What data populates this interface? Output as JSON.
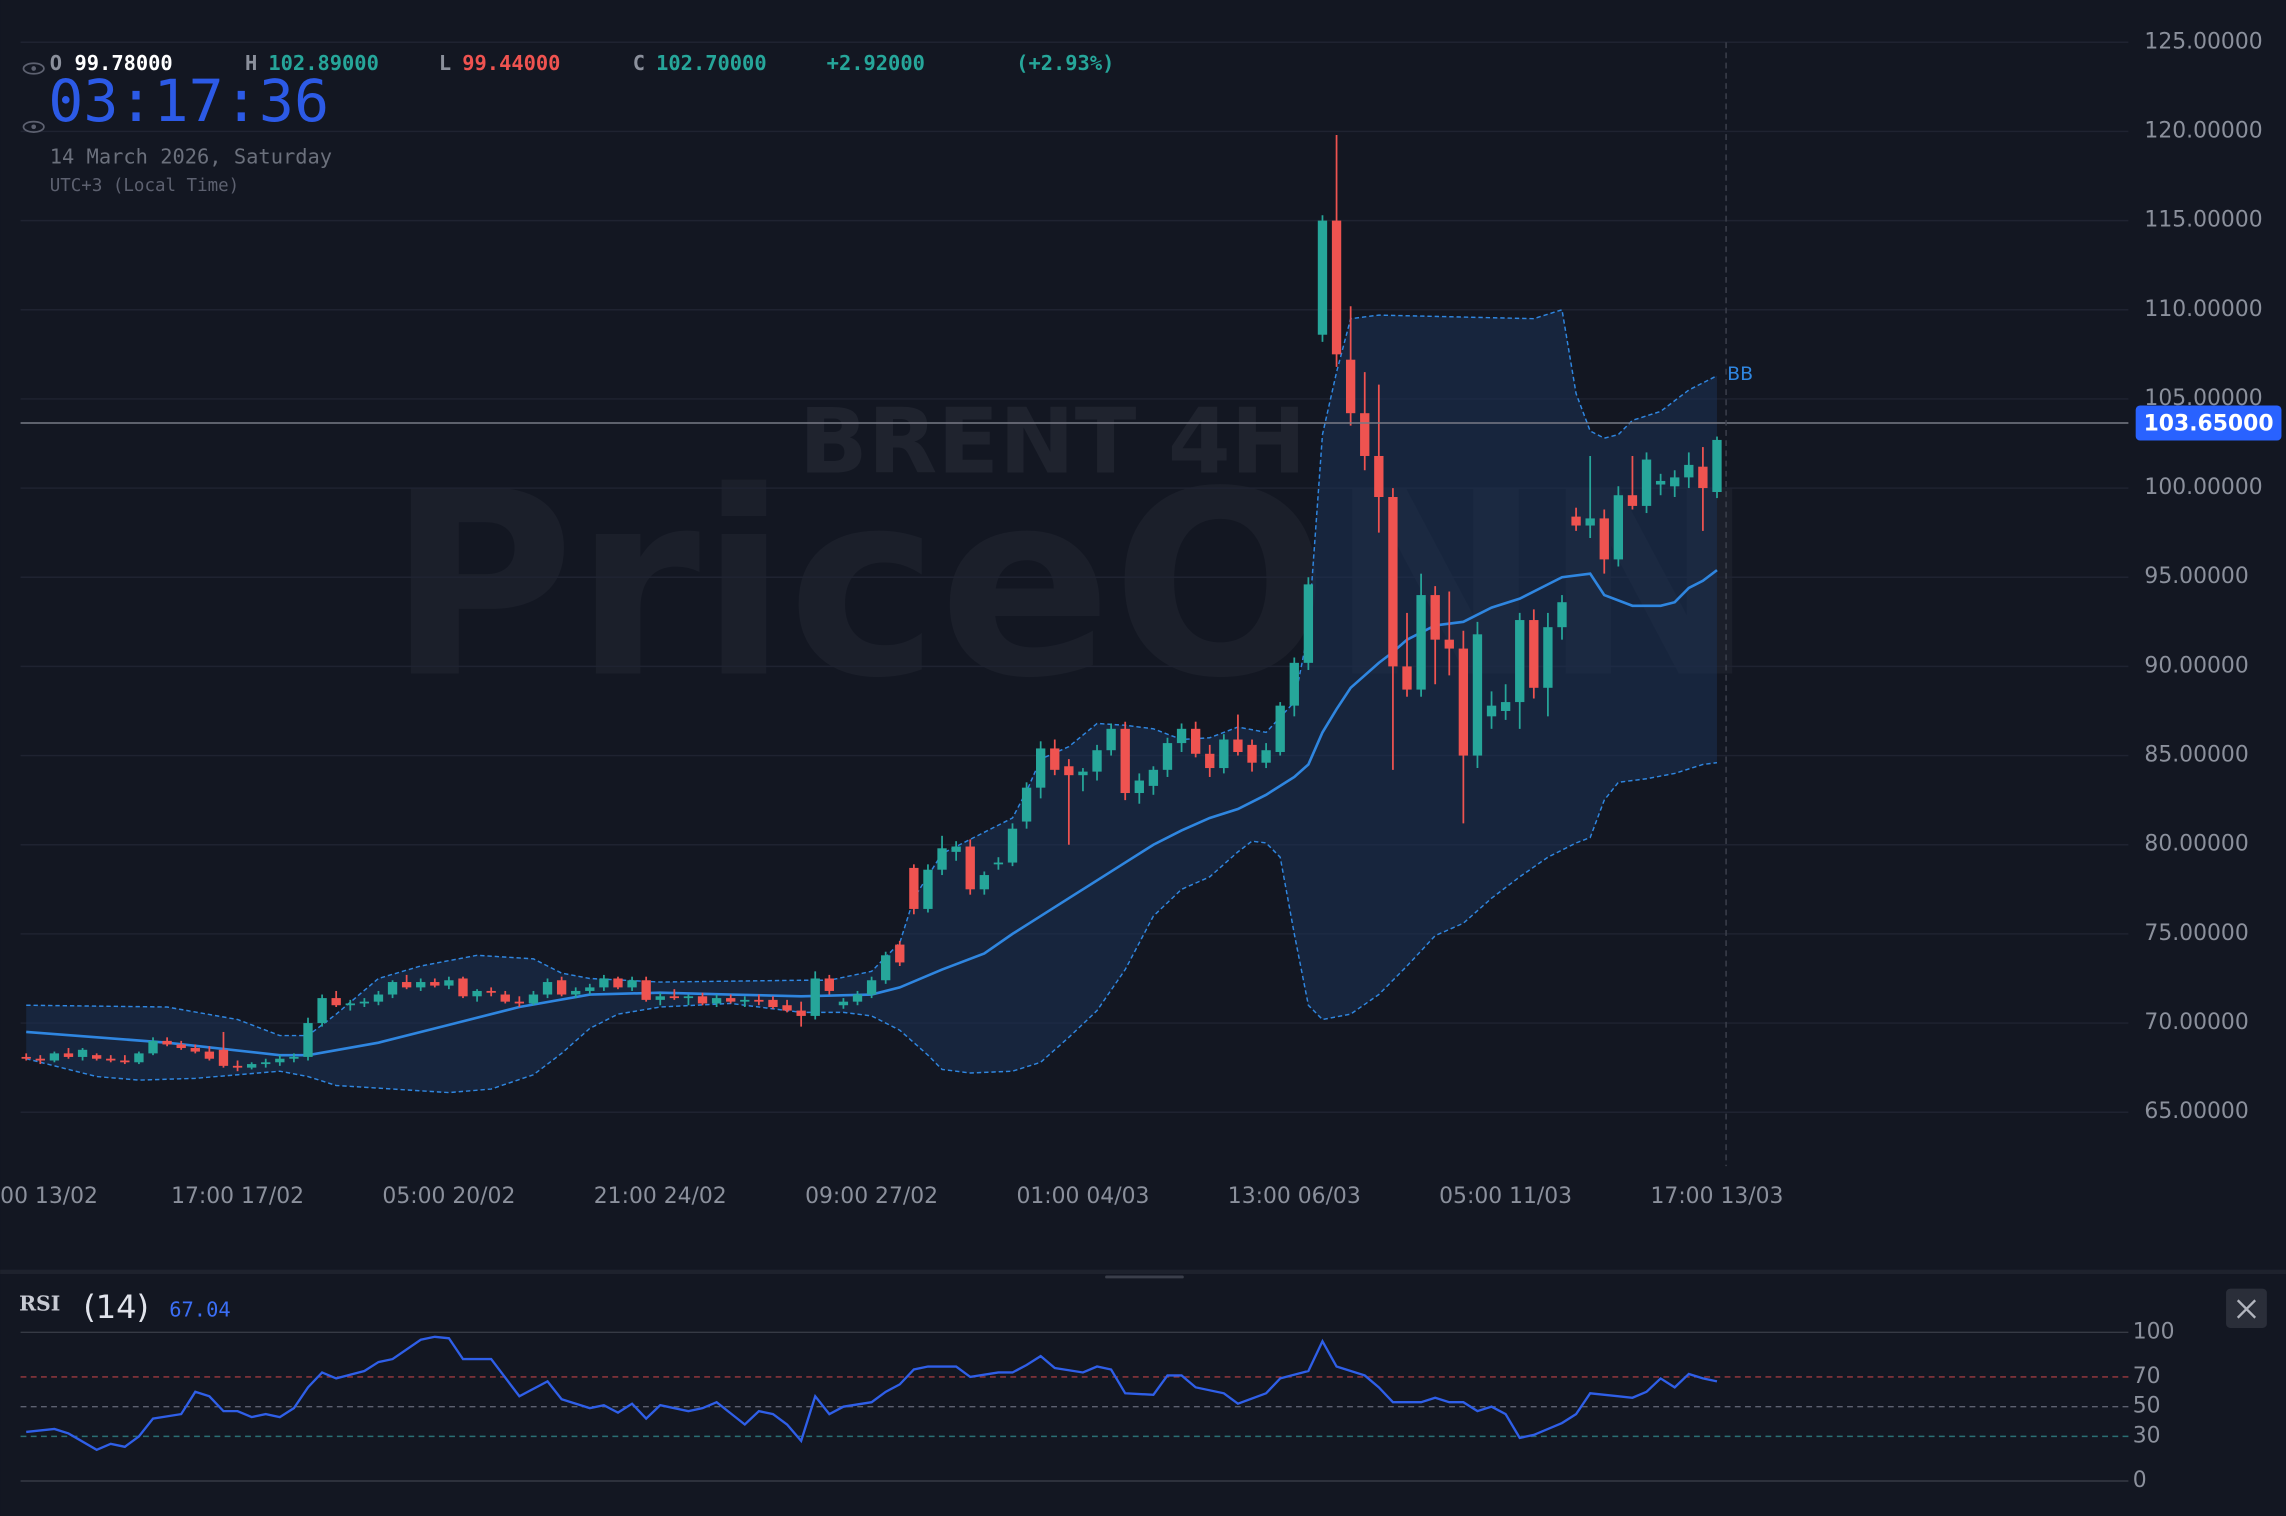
{
  "header": {
    "ohlc": [
      {
        "label": "O",
        "value": "99.78000",
        "color": "#ffffff"
      },
      {
        "label": "H",
        "value": "102.89000",
        "color": "#26a69a"
      },
      {
        "label": "L",
        "value": "99.44000",
        "color": "#ef5350"
      },
      {
        "label": "C",
        "value": "102.70000",
        "color": "#26a69a"
      }
    ],
    "change": "+2.92000",
    "change_pct": "(+2.93%)",
    "change_color": "#26a69a",
    "clock": "03:17:36",
    "date": "14 March 2026, Saturday",
    "timezone": "UTC+3 (Local Time)",
    "watermark": {
      "symbol": "BRENT 4H",
      "brand": "PriceONN"
    }
  },
  "chart_data": [
    {
      "type": "candlestick",
      "up_color": "#26a69a",
      "down_color": "#ef5350",
      "open": [
        68.1,
        68.0,
        67.9,
        68.3,
        68.1,
        68.2,
        68.0,
        67.9,
        67.8,
        68.3,
        69.0,
        68.8,
        68.6,
        68.4,
        68.5,
        67.6,
        67.5,
        67.7,
        67.8,
        68.0,
        68.1,
        70.0,
        71.4,
        71.0,
        71.1,
        71.2,
        71.6,
        72.3,
        72.0,
        72.3,
        72.1,
        72.5,
        71.5,
        71.8,
        71.6,
        71.2,
        71.1,
        71.6,
        72.4,
        71.6,
        71.8,
        72.0,
        72.5,
        72.0,
        72.4,
        71.3,
        71.5,
        71.4,
        71.5,
        71.1,
        71.4,
        71.2,
        71.3,
        71.3,
        71.0,
        70.7,
        70.4,
        72.5,
        71.0,
        71.2,
        71.6,
        72.4,
        74.4,
        78.7,
        76.4,
        78.6,
        79.6,
        79.9,
        77.5,
        78.9,
        79.0,
        81.3,
        83.2,
        85.4,
        84.4,
        83.9,
        84.1,
        85.3,
        86.5,
        82.9,
        83.3,
        84.2,
        85.7,
        86.5,
        85.1,
        84.3,
        85.9,
        85.6,
        84.6,
        85.2,
        87.8,
        90.2,
        108.6,
        115.0,
        107.2,
        104.2,
        101.8,
        99.5,
        90.0,
        88.7,
        94.0,
        91.5,
        91.0,
        85.0,
        87.2,
        87.5,
        88.0,
        92.6,
        88.8,
        92.2,
        98.4,
        97.9,
        98.3,
        96.0,
        99.6,
        99.0,
        100.2,
        100.1,
        100.6,
        101.2,
        99.78
      ],
      "high": [
        68.3,
        68.2,
        68.4,
        68.6,
        68.6,
        68.3,
        68.2,
        68.2,
        68.4,
        69.2,
        69.2,
        69.0,
        68.8,
        68.7,
        69.5,
        67.9,
        67.8,
        68.0,
        68.2,
        68.3,
        70.3,
        71.6,
        71.8,
        71.3,
        71.4,
        71.8,
        72.4,
        72.7,
        72.5,
        72.5,
        72.6,
        72.6,
        71.9,
        72.0,
        71.8,
        71.5,
        71.8,
        72.5,
        72.6,
        72.0,
        72.2,
        72.7,
        72.6,
        72.6,
        72.6,
        71.7,
        71.9,
        71.6,
        71.7,
        71.6,
        71.6,
        71.5,
        71.6,
        71.5,
        71.3,
        71.2,
        72.9,
        72.7,
        71.4,
        71.8,
        72.6,
        74.0,
        74.6,
        78.9,
        78.9,
        80.5,
        80.2,
        80.3,
        78.5,
        79.3,
        81.2,
        83.5,
        85.8,
        85.9,
        84.8,
        84.3,
        85.6,
        86.8,
        86.9,
        84.0,
        84.4,
        86.0,
        86.8,
        86.9,
        85.6,
        86.2,
        87.3,
        85.9,
        85.7,
        88.0,
        90.5,
        95.0,
        115.3,
        119.8,
        110.2,
        106.5,
        105.8,
        100.0,
        93.0,
        95.2,
        94.5,
        94.2,
        92.0,
        92.5,
        88.6,
        89.0,
        93.0,
        93.2,
        93.0,
        94.0,
        98.9,
        101.8,
        98.8,
        100.1,
        101.8,
        102.0,
        100.8,
        101.0,
        102.0,
        102.3,
        102.89
      ],
      "low": [
        67.9,
        67.7,
        67.8,
        68.0,
        67.9,
        67.9,
        67.8,
        67.7,
        67.7,
        68.2,
        68.7,
        68.5,
        68.3,
        67.9,
        67.5,
        67.3,
        67.4,
        67.5,
        67.6,
        67.8,
        67.9,
        69.8,
        70.9,
        70.7,
        70.9,
        71.0,
        71.4,
        71.9,
        71.8,
        72.0,
        71.9,
        71.4,
        71.2,
        71.5,
        71.1,
        70.9,
        71.0,
        71.4,
        71.5,
        71.4,
        71.6,
        71.8,
        71.9,
        71.8,
        71.2,
        71.0,
        71.3,
        71.0,
        71.0,
        70.9,
        71.1,
        70.9,
        71.0,
        70.8,
        70.6,
        69.8,
        70.2,
        71.6,
        70.8,
        71.0,
        71.4,
        72.2,
        73.2,
        76.1,
        76.2,
        78.3,
        79.1,
        77.2,
        77.2,
        78.6,
        78.8,
        80.9,
        82.6,
        83.9,
        80.0,
        83.0,
        83.6,
        85.0,
        82.5,
        82.3,
        82.8,
        83.8,
        85.2,
        84.9,
        83.8,
        84.0,
        85.0,
        84.1,
        84.3,
        85.0,
        87.2,
        89.8,
        108.2,
        106.8,
        103.5,
        101.0,
        97.5,
        84.2,
        88.3,
        88.3,
        89.0,
        89.5,
        81.2,
        84.3,
        86.5,
        87.0,
        86.5,
        88.2,
        87.2,
        91.5,
        97.6,
        97.2,
        95.2,
        95.6,
        98.8,
        98.6,
        99.6,
        99.5,
        100.0,
        97.6,
        99.44
      ],
      "close": [
        68.0,
        67.9,
        68.3,
        68.1,
        68.5,
        68.0,
        67.9,
        67.8,
        68.3,
        69.0,
        68.8,
        68.6,
        68.4,
        68.0,
        67.6,
        67.5,
        67.7,
        67.8,
        68.0,
        68.1,
        70.0,
        71.4,
        71.0,
        71.1,
        71.2,
        71.6,
        72.3,
        72.0,
        72.3,
        72.1,
        72.4,
        71.5,
        71.8,
        71.7,
        71.2,
        71.1,
        71.6,
        72.3,
        71.6,
        71.8,
        72.0,
        72.5,
        72.0,
        72.4,
        71.3,
        71.5,
        71.4,
        71.5,
        71.1,
        71.4,
        71.2,
        71.3,
        71.2,
        70.9,
        70.7,
        70.4,
        72.5,
        71.8,
        71.2,
        71.6,
        72.4,
        73.8,
        73.4,
        76.4,
        78.6,
        79.8,
        79.9,
        77.5,
        78.3,
        79.0,
        80.9,
        83.2,
        85.4,
        84.2,
        83.9,
        84.1,
        85.3,
        86.5,
        82.9,
        83.6,
        84.2,
        85.7,
        86.5,
        85.1,
        84.3,
        85.9,
        85.2,
        84.6,
        85.3,
        87.8,
        90.2,
        94.6,
        115.0,
        107.5,
        104.2,
        101.8,
        99.5,
        90.0,
        88.7,
        94.0,
        91.5,
        91.0,
        85.0,
        91.8,
        87.8,
        88.0,
        92.6,
        88.8,
        92.2,
        93.6,
        97.9,
        98.3,
        96.0,
        99.6,
        99.0,
        101.6,
        100.4,
        100.6,
        101.3,
        100.0,
        102.7
      ],
      "xlim": [
        -0.4,
        149.2
      ],
      "xticks": [
        {
          "value": 0,
          "label": "00 13/02"
        },
        {
          "value": 15,
          "label": "17:00 17/02"
        },
        {
          "value": 30,
          "label": "05:00 20/02"
        },
        {
          "value": 45,
          "label": "21:00 24/02"
        },
        {
          "value": 60,
          "label": "09:00 27/02"
        },
        {
          "value": 75,
          "label": "01:00 04/03"
        },
        {
          "value": 90,
          "label": "13:00 06/03"
        },
        {
          "value": 105,
          "label": "05:00 11/03"
        },
        {
          "value": 120,
          "label": "17:00 13/03"
        }
      ],
      "ylim": [
        65,
        125
      ],
      "yticks": [
        {
          "value": 65,
          "label": "65.00000"
        },
        {
          "value": 70,
          "label": "70.00000"
        },
        {
          "value": 75,
          "label": "75.00000"
        },
        {
          "value": 80,
          "label": "80.00000"
        },
        {
          "value": 85,
          "label": "85.00000"
        },
        {
          "value": 90,
          "label": "90.00000"
        },
        {
          "value": 95,
          "label": "95.00000"
        },
        {
          "value": 100,
          "label": "100.00000"
        },
        {
          "value": 105,
          "label": "105.00000"
        },
        {
          "value": 110,
          "label": "110.00000"
        },
        {
          "value": 115,
          "label": "115.00000"
        },
        {
          "value": 120,
          "label": "120.00000"
        },
        {
          "value": 125,
          "label": "125.00000"
        }
      ],
      "grid": true,
      "price_line": {
        "value": 103.65,
        "label": "103.65000",
        "color": "#2962ff"
      },
      "bands": {
        "name": "BB",
        "color": "#2f86e0",
        "fill": "#1b3154",
        "upper": {
          "x": [
            0,
            10,
            15,
            18,
            20,
            22,
            25,
            28,
            32,
            36,
            38,
            40,
            45,
            55,
            57,
            60,
            62,
            63,
            65,
            67,
            70,
            71,
            72,
            74,
            76,
            78,
            80,
            82,
            84,
            86,
            88,
            90,
            91,
            92,
            93,
            94,
            96,
            107,
            109,
            110,
            111,
            112,
            113,
            114,
            116,
            118,
            120
          ],
          "values": [
            71.0,
            70.9,
            70.2,
            69.3,
            69.3,
            70.5,
            72.5,
            73.2,
            73.8,
            73.6,
            72.8,
            72.5,
            72.3,
            72.4,
            72.4,
            72.9,
            74.5,
            77.0,
            79.5,
            80.3,
            81.5,
            83.0,
            84.8,
            85.5,
            86.8,
            86.7,
            86.5,
            85.9,
            86.0,
            86.6,
            86.3,
            88.0,
            92.0,
            103.0,
            106.5,
            109.5,
            109.7,
            109.5,
            110.0,
            105.3,
            103.2,
            102.8,
            103.0,
            103.8,
            104.3,
            105.5,
            106.3
          ]
        },
        "middle": {
          "x": [
            0,
            10,
            18,
            20,
            25,
            30,
            35,
            40,
            45,
            50,
            55,
            60,
            62,
            65,
            68,
            70,
            72,
            75,
            78,
            80,
            82,
            84,
            86,
            88,
            90,
            91,
            92,
            93,
            94,
            96,
            97,
            98,
            100,
            102,
            104,
            106,
            108,
            109,
            111,
            112,
            114,
            116,
            117,
            118,
            119,
            120
          ],
          "values": [
            69.5,
            68.9,
            68.2,
            68.2,
            68.9,
            69.9,
            70.9,
            71.6,
            71.7,
            71.6,
            71.5,
            71.6,
            72.0,
            73.0,
            73.9,
            75.0,
            76.0,
            77.5,
            79.0,
            80.0,
            80.8,
            81.5,
            82.0,
            82.8,
            83.8,
            84.5,
            86.3,
            87.6,
            88.8,
            90.2,
            90.8,
            91.5,
            92.3,
            92.5,
            93.3,
            93.8,
            94.6,
            95.0,
            95.2,
            94.0,
            93.4,
            93.4,
            93.6,
            94.4,
            94.8,
            95.4
          ]
        },
        "lower": {
          "x": [
            0,
            5,
            8,
            12,
            18,
            20,
            22,
            26,
            30,
            33,
            36,
            38,
            40,
            42,
            45,
            50,
            55,
            58,
            60,
            62,
            64,
            65,
            67,
            70,
            72,
            74,
            76,
            78,
            79,
            80,
            82,
            84,
            86,
            87,
            88,
            89,
            90,
            91,
            92,
            94,
            96,
            98,
            100,
            102,
            104,
            106,
            108,
            110,
            111,
            112,
            113,
            115,
            117,
            119,
            120
          ],
          "values": [
            68.0,
            67.0,
            66.8,
            66.9,
            67.3,
            67.0,
            66.5,
            66.3,
            66.1,
            66.3,
            67.1,
            68.3,
            69.7,
            70.5,
            70.9,
            71.1,
            70.6,
            70.6,
            70.4,
            69.6,
            68.2,
            67.4,
            67.2,
            67.3,
            67.8,
            69.2,
            70.7,
            73.0,
            74.5,
            76.0,
            77.5,
            78.2,
            79.6,
            80.2,
            80.1,
            79.3,
            75.0,
            71.0,
            70.2,
            70.5,
            71.6,
            73.2,
            74.9,
            75.6,
            77.0,
            78.2,
            79.3,
            80.1,
            80.4,
            82.5,
            83.5,
            83.7,
            84.0,
            84.5,
            84.6
          ]
        }
      }
    },
    {
      "type": "line",
      "name": "RSI",
      "period": "(14)",
      "color": "#2f5fe8",
      "x": [
        0,
        2,
        3,
        5,
        6,
        7,
        8,
        9,
        11,
        12,
        13,
        14,
        15,
        16,
        17,
        18,
        19,
        20,
        21,
        22,
        24,
        25,
        26,
        28,
        29,
        30,
        31,
        32,
        33,
        35,
        37,
        38,
        40,
        41,
        42,
        43,
        44,
        45,
        47,
        48,
        49,
        51,
        52,
        53,
        54,
        55,
        56,
        57,
        58,
        60,
        61,
        62,
        63,
        64,
        66,
        67,
        69,
        70,
        71,
        72,
        73,
        75,
        76,
        77,
        78,
        80,
        81,
        82,
        83,
        85,
        86,
        88,
        89,
        91,
        92,
        93,
        95,
        96,
        97,
        99,
        100,
        101,
        102,
        103,
        104,
        105,
        106,
        107,
        109,
        110,
        111,
        114,
        115,
        116,
        117,
        118,
        119,
        120
      ],
      "values": [
        33,
        35,
        32,
        21,
        25,
        23,
        30,
        42,
        45,
        60,
        57,
        47,
        47,
        43,
        45,
        43,
        49,
        63,
        73,
        69,
        74,
        80,
        82,
        95,
        97,
        96,
        82,
        82,
        82,
        57,
        67,
        55,
        49,
        51,
        46,
        52,
        42,
        51,
        47,
        49,
        53,
        38,
        47,
        45,
        38,
        27,
        57,
        45,
        50,
        53,
        60,
        65,
        75,
        77,
        77,
        70,
        73,
        73,
        78,
        84,
        76,
        73,
        77,
        75,
        59,
        58,
        71,
        71,
        63,
        59,
        52,
        59,
        69,
        74,
        94,
        77,
        71,
        63,
        53,
        53,
        56,
        53,
        53,
        47,
        50,
        45,
        29,
        31,
        39,
        45,
        59,
        56,
        60,
        69,
        63,
        72,
        69,
        67.04
      ],
      "xlim": [
        -0.4,
        149.2
      ],
      "ylim": [
        0,
        100
      ],
      "yticks": [
        0,
        30,
        50,
        70,
        100
      ],
      "tick_colors": [
        "#363a45",
        "#2a6f74",
        "#5d6170",
        "#9c3a3f",
        "#363a45"
      ],
      "tick_dashed": [
        false,
        true,
        true,
        true,
        false
      ]
    }
  ]
}
